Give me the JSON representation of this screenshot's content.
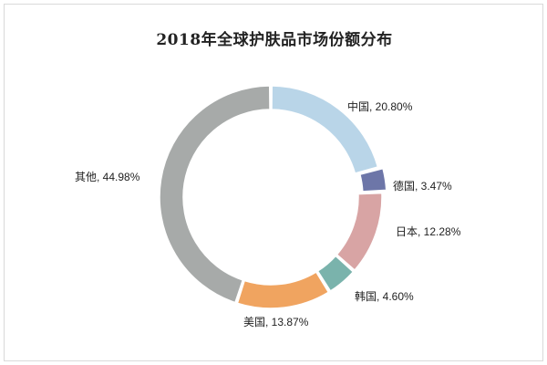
{
  "chart_data": {
    "type": "pie",
    "variant": "donut",
    "title": "2018年全球护肤品市场份额分布",
    "slices": [
      {
        "name": "中国",
        "value": 20.8,
        "label": "中国, 20.80%",
        "color": "#b9d5e8"
      },
      {
        "name": "德国",
        "value": 3.47,
        "label": "德国, 3.47%",
        "color": "#6d76a8"
      },
      {
        "name": "日本",
        "value": 12.28,
        "label": "日本, 12.28%",
        "color": "#d8a4a4"
      },
      {
        "name": "韩国",
        "value": 4.6,
        "label": "韩国, 4.60%",
        "color": "#7ab3ac"
      },
      {
        "name": "美国",
        "value": 13.87,
        "label": "美国, 13.87%",
        "color": "#f0a460"
      },
      {
        "name": "其他",
        "value": 44.98,
        "label": "其他, 44.98%",
        "color": "#a7aaa9"
      }
    ],
    "start_angle_deg": 0,
    "direction": "clockwise"
  }
}
